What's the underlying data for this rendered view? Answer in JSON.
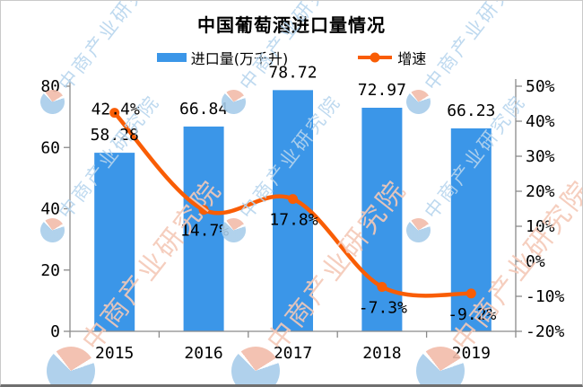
{
  "title": "中国葡萄酒进口量情况",
  "legend": {
    "bar_label": "进口量(万千升)",
    "line_label": "增速"
  },
  "watermark": {
    "text": "中商产业研究院"
  },
  "colors": {
    "bar": "#3B96E8",
    "line": "#F95D05",
    "axis": "#8A8A8A",
    "label_text": "#000000",
    "watermark_blue_text": "#B7D5EE",
    "watermark_pink_text": "#F5C9B8",
    "watermark_logo_blue": "#A8CDEA",
    "watermark_logo_pink": "#F2BCAA"
  },
  "chart_data": {
    "type": "bar",
    "subtype": "bar-line-combo",
    "title": "中国葡萄酒进口量情况",
    "categories": [
      "2015",
      "2016",
      "2017",
      "2018",
      "2019"
    ],
    "series": [
      {
        "name": "进口量(万千升)",
        "type": "bar",
        "axis": "left",
        "values": [
          58.28,
          66.84,
          78.72,
          72.97,
          66.23
        ],
        "labels": [
          "58.28",
          "66.84",
          "78.72",
          "72.97",
          "66.23"
        ],
        "color": "#3B96E8"
      },
      {
        "name": "增速",
        "type": "line",
        "axis": "right",
        "smooth": true,
        "values": [
          42.4,
          14.7,
          17.8,
          -7.3,
          -9.2
        ],
        "labels": [
          "42.4%",
          "14.7%",
          "17.8%",
          "-7.3%",
          "-9.2%"
        ],
        "label_side": [
          "on",
          "below",
          "below",
          "below",
          "below"
        ],
        "color": "#F95D05"
      }
    ],
    "left_axis": {
      "range": [
        0,
        80
      ],
      "ticks": [
        0,
        20,
        40,
        60,
        80
      ]
    },
    "right_axis": {
      "range": [
        -20,
        50
      ],
      "ticks": [
        {
          "v": -20,
          "label": "-20%"
        },
        {
          "v": -10,
          "label": "-10%"
        },
        {
          "v": 0,
          "label": "0%"
        },
        {
          "v": 10,
          "label": "10%"
        },
        {
          "v": 20,
          "label": "20%"
        },
        {
          "v": 30,
          "label": "30%"
        },
        {
          "v": 40,
          "label": "40%"
        },
        {
          "v": 50,
          "label": "50%"
        }
      ]
    },
    "legend_position": "top",
    "grid": false
  }
}
